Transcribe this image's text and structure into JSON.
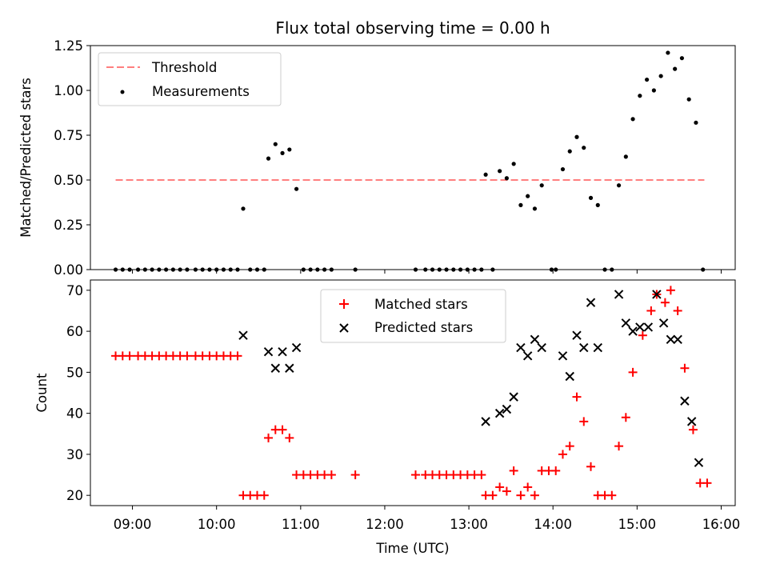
{
  "chart_data": [
    {
      "type": "scatter",
      "title": "Flux total observing time = 0.00 h",
      "xlabel": "",
      "ylabel": "Matched/Predicted stars",
      "xlim": [
        "08:30",
        "16:10"
      ],
      "ylim": [
        0,
        1.25
      ],
      "yticks": [
        "0.00",
        "0.25",
        "0.50",
        "0.75",
        "1.00",
        "1.25"
      ],
      "legend_position": "top-left",
      "threshold": {
        "name": "Threshold",
        "value": 0.5,
        "x_range": [
          "08:48",
          "15:48"
        ],
        "color": "#ff7f7f",
        "style": "dashed"
      },
      "series": [
        {
          "name": "Measurements",
          "marker": "dot",
          "color": "#000000",
          "points": [
            [
              "08:48",
              0
            ],
            [
              "08:53",
              0
            ],
            [
              "08:58",
              0
            ],
            [
              "09:04",
              0
            ],
            [
              "09:09",
              0
            ],
            [
              "09:14",
              0
            ],
            [
              "09:19",
              0
            ],
            [
              "09:24",
              0
            ],
            [
              "09:29",
              0
            ],
            [
              "09:34",
              0
            ],
            [
              "09:39",
              0
            ],
            [
              "09:45",
              0
            ],
            [
              "09:50",
              0
            ],
            [
              "09:55",
              0
            ],
            [
              "10:00",
              0
            ],
            [
              "10:05",
              0
            ],
            [
              "10:10",
              0
            ],
            [
              "10:15",
              0
            ],
            [
              "10:19",
              0.34
            ],
            [
              "10:24",
              0
            ],
            [
              "10:29",
              0
            ],
            [
              "10:34",
              0
            ],
            [
              "10:37",
              0.62
            ],
            [
              "10:42",
              0.7
            ],
            [
              "10:47",
              0.65
            ],
            [
              "10:52",
              0.67
            ],
            [
              "10:57",
              0.45
            ],
            [
              "11:02",
              0
            ],
            [
              "11:07",
              0
            ],
            [
              "11:12",
              0
            ],
            [
              "11:17",
              0
            ],
            [
              "11:22",
              0
            ],
            [
              "11:39",
              0
            ],
            [
              "12:22",
              0
            ],
            [
              "12:29",
              0
            ],
            [
              "12:34",
              0
            ],
            [
              "12:39",
              0
            ],
            [
              "12:44",
              0
            ],
            [
              "12:49",
              0
            ],
            [
              "12:54",
              0
            ],
            [
              "12:59",
              0
            ],
            [
              "13:04",
              0
            ],
            [
              "13:09",
              0
            ],
            [
              "13:12",
              0.53
            ],
            [
              "13:17",
              0
            ],
            [
              "13:22",
              0.55
            ],
            [
              "13:27",
              0.51
            ],
            [
              "13:32",
              0.59
            ],
            [
              "13:37",
              0.36
            ],
            [
              "13:42",
              0.41
            ],
            [
              "13:47",
              0.34
            ],
            [
              "13:52",
              0.47
            ],
            [
              "13:59",
              0
            ],
            [
              "14:02",
              0
            ],
            [
              "14:07",
              0.56
            ],
            [
              "14:12",
              0.66
            ],
            [
              "14:17",
              0.74
            ],
            [
              "14:22",
              0.68
            ],
            [
              "14:27",
              0.4
            ],
            [
              "14:32",
              0.36
            ],
            [
              "14:37",
              0
            ],
            [
              "14:42",
              0
            ],
            [
              "14:47",
              0.47
            ],
            [
              "14:52",
              0.63
            ],
            [
              "14:57",
              0.84
            ],
            [
              "15:02",
              0.97
            ],
            [
              "15:07",
              1.06
            ],
            [
              "15:12",
              1.0
            ],
            [
              "15:17",
              1.08
            ],
            [
              "15:22",
              1.21
            ],
            [
              "15:27",
              1.12
            ],
            [
              "15:32",
              1.18
            ],
            [
              "15:37",
              0.95
            ],
            [
              "15:42",
              0.82
            ],
            [
              "15:47",
              0
            ]
          ]
        }
      ]
    },
    {
      "type": "scatter",
      "title": "",
      "xlabel": "Time (UTC)",
      "ylabel": "Count",
      "xlim": [
        "08:30",
        "16:10"
      ],
      "ylim": [
        17.5,
        72.5
      ],
      "xticks": [
        "09:00",
        "10:00",
        "11:00",
        "12:00",
        "13:00",
        "14:00",
        "15:00",
        "16:00"
      ],
      "yticks": [
        "20",
        "30",
        "40",
        "50",
        "60",
        "70"
      ],
      "legend_position": "top-center",
      "series": [
        {
          "name": "Matched stars",
          "marker": "plus",
          "color": "#ff0000",
          "points": [
            [
              "08:48",
              54
            ],
            [
              "08:53",
              54
            ],
            [
              "08:58",
              54
            ],
            [
              "09:04",
              54
            ],
            [
              "09:09",
              54
            ],
            [
              "09:14",
              54
            ],
            [
              "09:19",
              54
            ],
            [
              "09:24",
              54
            ],
            [
              "09:29",
              54
            ],
            [
              "09:34",
              54
            ],
            [
              "09:39",
              54
            ],
            [
              "09:45",
              54
            ],
            [
              "09:50",
              54
            ],
            [
              "09:55",
              54
            ],
            [
              "10:00",
              54
            ],
            [
              "10:05",
              54
            ],
            [
              "10:10",
              54
            ],
            [
              "10:15",
              54
            ],
            [
              "10:19",
              20
            ],
            [
              "10:24",
              20
            ],
            [
              "10:29",
              20
            ],
            [
              "10:34",
              20
            ],
            [
              "10:37",
              34
            ],
            [
              "10:42",
              36
            ],
            [
              "10:47",
              36
            ],
            [
              "10:52",
              34
            ],
            [
              "10:57",
              25
            ],
            [
              "11:02",
              25
            ],
            [
              "11:07",
              25
            ],
            [
              "11:12",
              25
            ],
            [
              "11:17",
              25
            ],
            [
              "11:22",
              25
            ],
            [
              "11:39",
              25
            ],
            [
              "12:22",
              25
            ],
            [
              "12:29",
              25
            ],
            [
              "12:34",
              25
            ],
            [
              "12:39",
              25
            ],
            [
              "12:44",
              25
            ],
            [
              "12:49",
              25
            ],
            [
              "12:54",
              25
            ],
            [
              "12:59",
              25
            ],
            [
              "13:04",
              25
            ],
            [
              "13:09",
              25
            ],
            [
              "13:12",
              20
            ],
            [
              "13:17",
              20
            ],
            [
              "13:22",
              22
            ],
            [
              "13:27",
              21
            ],
            [
              "13:32",
              26
            ],
            [
              "13:37",
              20
            ],
            [
              "13:42",
              22
            ],
            [
              "13:47",
              20
            ],
            [
              "13:52",
              26
            ],
            [
              "13:57",
              26
            ],
            [
              "14:02",
              26
            ],
            [
              "14:07",
              30
            ],
            [
              "14:12",
              32
            ],
            [
              "14:17",
              44
            ],
            [
              "14:22",
              38
            ],
            [
              "14:27",
              27
            ],
            [
              "14:32",
              20
            ],
            [
              "14:37",
              20
            ],
            [
              "14:42",
              20
            ],
            [
              "14:47",
              32
            ],
            [
              "14:52",
              39
            ],
            [
              "14:57",
              50
            ],
            [
              "15:04",
              59
            ],
            [
              "15:10",
              65
            ],
            [
              "15:14",
              69
            ],
            [
              "15:20",
              67
            ],
            [
              "15:24",
              70
            ],
            [
              "15:29",
              65
            ],
            [
              "15:34",
              51
            ],
            [
              "15:40",
              36
            ],
            [
              "15:45",
              23
            ],
            [
              "15:50",
              23
            ]
          ]
        },
        {
          "name": "Predicted stars",
          "marker": "x",
          "color": "#000000",
          "points": [
            [
              "10:19",
              59
            ],
            [
              "10:37",
              55
            ],
            [
              "10:42",
              51
            ],
            [
              "10:47",
              55
            ],
            [
              "10:52",
              51
            ],
            [
              "10:57",
              56
            ],
            [
              "13:12",
              38
            ],
            [
              "13:22",
              40
            ],
            [
              "13:27",
              41
            ],
            [
              "13:32",
              44
            ],
            [
              "13:37",
              56
            ],
            [
              "13:42",
              54
            ],
            [
              "13:47",
              58
            ],
            [
              "13:52",
              56
            ],
            [
              "14:07",
              54
            ],
            [
              "14:12",
              49
            ],
            [
              "14:17",
              59
            ],
            [
              "14:22",
              56
            ],
            [
              "14:27",
              67
            ],
            [
              "14:32",
              56
            ],
            [
              "14:47",
              69
            ],
            [
              "14:52",
              62
            ],
            [
              "14:57",
              60
            ],
            [
              "15:02",
              61
            ],
            [
              "15:08",
              61
            ],
            [
              "15:14",
              69
            ],
            [
              "15:19",
              62
            ],
            [
              "15:24",
              58
            ],
            [
              "15:29",
              58
            ],
            [
              "15:34",
              43
            ],
            [
              "15:39",
              38
            ],
            [
              "15:44",
              28
            ]
          ]
        }
      ]
    }
  ]
}
